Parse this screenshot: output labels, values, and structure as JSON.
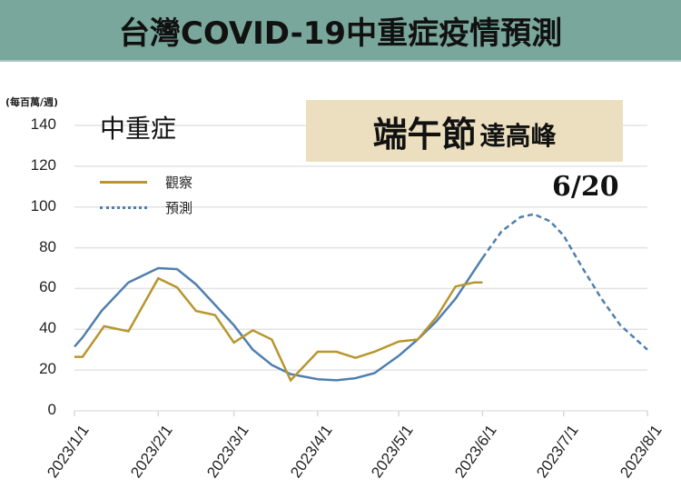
{
  "banner": {
    "title": "台灣COVID-19中重症疫情預測"
  },
  "chart_data": {
    "type": "line",
    "title": "台灣COVID-19中重症疫情預測",
    "subtitle": "中重症",
    "ylabel": "(每百萬/週)",
    "xlabel": "",
    "ylim": [
      0,
      140
    ],
    "yticks": [
      0,
      20,
      40,
      60,
      80,
      100,
      120,
      140
    ],
    "xticks": [
      "2023/1/1",
      "2023/2/1",
      "2023/3/1",
      "2023/4/1",
      "2023/5/1",
      "2023/6/1",
      "2023/7/1",
      "2023/8/1"
    ],
    "grid": true,
    "legend_position": "upper-left",
    "annotations": [
      "端午節達高峰",
      "6/20"
    ],
    "series": [
      {
        "name": "觀察",
        "color": "#b8962e",
        "style": "solid",
        "x": [
          "2023-01-01",
          "2023-01-04",
          "2023-01-12",
          "2023-01-21",
          "2023-02-01",
          "2023-02-08",
          "2023-02-15",
          "2023-02-22",
          "2023-03-01",
          "2023-03-08",
          "2023-03-15",
          "2023-03-22",
          "2023-04-01",
          "2023-04-08",
          "2023-04-15",
          "2023-04-22",
          "2023-05-01",
          "2023-05-08",
          "2023-05-15",
          "2023-05-22",
          "2023-05-29",
          "2023-06-01"
        ],
        "values": [
          26.5,
          26.5,
          41.5,
          39,
          65,
          60.5,
          49,
          47,
          33.5,
          39.5,
          35,
          15,
          29,
          29,
          26,
          29,
          34,
          35,
          46,
          61,
          63,
          63
        ]
      },
      {
        "name": "預測",
        "color": "#4f7faf",
        "style": "solid (fitted) then dashed (forecast after 6/1)",
        "x": [
          "2023-01-01",
          "2023-01-04",
          "2023-01-11",
          "2023-01-21",
          "2023-02-01",
          "2023-02-08",
          "2023-02-15",
          "2023-02-22",
          "2023-03-01",
          "2023-03-08",
          "2023-03-15",
          "2023-03-22",
          "2023-04-01",
          "2023-04-08",
          "2023-04-15",
          "2023-04-22",
          "2023-05-01",
          "2023-05-08",
          "2023-05-15",
          "2023-05-22",
          "2023-06-01",
          "2023-06-08",
          "2023-06-15",
          "2023-06-20",
          "2023-06-26",
          "2023-07-01",
          "2023-07-08",
          "2023-07-15",
          "2023-07-22",
          "2023-08-01"
        ],
        "values": [
          31.5,
          36,
          49,
          63,
          70,
          69.5,
          62,
          52,
          42,
          30,
          22.5,
          18,
          15.5,
          15,
          16,
          18.5,
          27,
          35,
          44,
          55,
          75,
          88,
          95,
          96.5,
          93,
          86,
          70,
          55,
          42,
          30
        ]
      }
    ]
  },
  "legend": {
    "observed": "觀察",
    "forecast": "預測"
  },
  "callout": {
    "main": "端午節",
    "sub": "達高峰",
    "date": "6/20"
  }
}
